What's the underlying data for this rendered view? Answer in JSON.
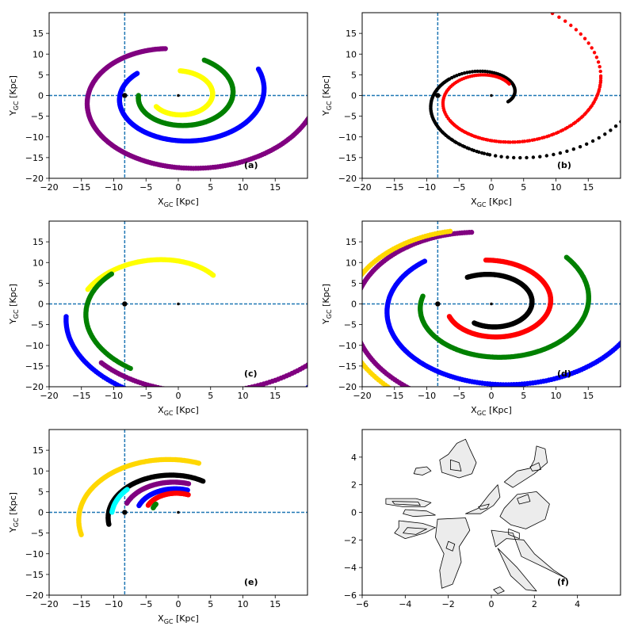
{
  "figure": {
    "background": "#ffffff"
  },
  "colors": {
    "axis_line": "#1f77b4",
    "frame": "#000000",
    "contour_fill": "#ececec"
  },
  "chart_data": [
    {
      "panel_label": "(a)",
      "type": "scatter",
      "xlabel": "X",
      "xlabel_sub": "GC",
      "xlabel_unit": " [Kpc]",
      "ylabel": "Y",
      "ylabel_sub": "GC",
      "ylabel_unit": " [Kpc]",
      "xlim": [
        -20,
        20
      ],
      "ylim": [
        -20,
        20
      ],
      "xticks": [
        -20,
        -15,
        -10,
        -5,
        0,
        5,
        10,
        15
      ],
      "yticks": [
        -20,
        -15,
        -10,
        -5,
        0,
        5,
        10,
        15
      ],
      "crosshair": {
        "x": -8.3,
        "y": 0
      },
      "sun": [
        -8.3,
        0
      ],
      "center": [
        0,
        0
      ],
      "series": [
        {
          "color": "#800080",
          "arcs": [
            {
              "r0": 9.0,
              "b": 0.14,
              "t0": 100,
              "t1": 350
            }
          ]
        },
        {
          "color": "#0000ff",
          "arcs": [
            {
              "r0": 6.2,
              "b": 0.12,
              "t0": 140,
              "t1": 388
            }
          ]
        },
        {
          "color": "#008000",
          "arcs": [
            {
              "r0": 4.5,
              "b": 0.1,
              "t0": 180,
              "t1": 425
            }
          ]
        },
        {
          "color": "#ffff00",
          "arcs": [
            {
              "r0": 3.2,
              "b": 0.08,
              "t0": 218,
              "t1": 448
            }
          ]
        }
      ]
    },
    {
      "panel_label": "(b)",
      "type": "scatter",
      "xlabel": "X",
      "xlabel_sub": "GC",
      "xlabel_unit": " [Kpc]",
      "ylabel": "Y",
      "ylabel_sub": "GC",
      "ylabel_unit": " [Kpc]",
      "xlim": [
        -20,
        20
      ],
      "ylim": [
        -20,
        20
      ],
      "xticks": [
        -20,
        -15,
        -10,
        -5,
        0,
        5,
        10,
        15
      ],
      "yticks": [
        -20,
        -15,
        -10,
        -5,
        0,
        5,
        10,
        15
      ],
      "crosshair": {
        "x": -8.3,
        "y": 0
      },
      "sun": [
        -8.3,
        0
      ],
      "center": [
        0,
        0
      ],
      "series": [
        {
          "color": "#000000",
          "sparse": true,
          "arcs": [
            {
              "r0": 3.5,
              "b": 0.3,
              "t0": 150,
              "t1": 450
            },
            {
              "r0": 3.5,
              "b": 0.3,
              "t0": -30,
              "t1": 270
            }
          ]
        },
        {
          "color": "#ff0000",
          "sparse": true,
          "arcs": [
            {
              "r0": 3.2,
              "b": 0.26,
              "t0": 45,
              "t1": 375
            },
            {
              "r0": 3.2,
              "b": 0.26,
              "t0": 225,
              "t1": 555
            }
          ]
        }
      ]
    },
    {
      "panel_label": "(c)",
      "type": "scatter",
      "xlabel": "X",
      "xlabel_sub": "GC",
      "xlabel_unit": " [Kpc]",
      "ylabel": "Y",
      "ylabel_sub": "GC",
      "ylabel_unit": " [Kpc]",
      "xlim": [
        -20,
        20
      ],
      "ylim": [
        -20,
        20
      ],
      "xticks": [
        -20,
        -15,
        -10,
        -5,
        0,
        5,
        10,
        15
      ],
      "yticks": [
        -20,
        -15,
        -10,
        -5,
        0,
        5,
        10,
        15
      ],
      "crosshair": {
        "x": -8.3,
        "y": 0
      },
      "sun": [
        -8.3,
        0
      ],
      "center": [
        0,
        0
      ],
      "series": [
        {
          "color": "#ffff00",
          "arcs": [
            {
              "r0": 7.0,
              "b": 0.25,
              "t0": 52,
              "t1": 166
            }
          ]
        },
        {
          "color": "#008000",
          "arcs": [
            {
              "r0": 8.0,
              "b": 0.18,
              "t0": 145,
              "t1": 245
            }
          ]
        },
        {
          "color": "#0000ff",
          "arcs": [
            {
              "r0": 8.5,
              "b": 0.22,
              "t0": 190,
              "t1": 346
            }
          ]
        },
        {
          "color": "#800080",
          "arcs": [
            {
              "r0": 9.0,
              "b": 0.18,
              "t0": 230,
              "t1": 398
            }
          ]
        }
      ]
    },
    {
      "panel_label": "(d)",
      "type": "scatter",
      "xlabel": "X",
      "xlabel_sub": "GC",
      "xlabel_unit": " [Kpc]",
      "ylabel": "Y",
      "ylabel_sub": "GC",
      "ylabel_unit": " [Kpc]",
      "xlim": [
        -20,
        20
      ],
      "ylim": [
        -20,
        20
      ],
      "xticks": [
        -20,
        -15,
        -10,
        -5,
        0,
        5,
        10,
        15
      ],
      "yticks": [
        -20,
        -15,
        -10,
        -5,
        0,
        5,
        10,
        15
      ],
      "crosshair": {
        "x": -8.3,
        "y": 0
      },
      "sun": [
        -8.3,
        0
      ],
      "center": [
        0,
        0
      ],
      "series": [
        {
          "color": "#800080",
          "arcs": [
            {
              "r0": 14.0,
              "b": 0.13,
              "t0": 100,
              "t1": 345
            }
          ]
        },
        {
          "color": "#0000ff",
          "arcs": [
            {
              "r0": 11.0,
              "b": 0.12,
              "t0": 135,
              "t1": 385
            }
          ]
        },
        {
          "color": "#ffd700",
          "arcs": [
            {
              "r0": 14.0,
              "b": 0.15,
              "t0": 110,
              "t1": 355
            }
          ]
        },
        {
          "color": "#008000",
          "arcs": [
            {
              "r0": 8.0,
              "b": 0.1,
              "t0": 170,
              "t1": 405
            }
          ]
        },
        {
          "color": "#ff0000",
          "arcs": [
            {
              "r0": 5.2,
              "b": 0.09,
              "t0": 205,
              "t1": 455
            }
          ]
        },
        {
          "color": "#000000",
          "arcs": [
            {
              "r0": 3.8,
              "b": 0.08,
              "t0": 240,
              "t1": 480
            }
          ]
        }
      ]
    },
    {
      "panel_label": "(e)",
      "type": "scatter",
      "xlabel": "X",
      "xlabel_sub": "GC",
      "xlabel_unit": " [Kpc]",
      "ylabel": "Y",
      "ylabel_sub": "GC",
      "ylabel_unit": " [Kpc]",
      "xlim": [
        -20,
        20
      ],
      "ylim": [
        -20,
        20
      ],
      "xticks": [
        -20,
        -15,
        -10,
        -5,
        0,
        5,
        10,
        15
      ],
      "yticks": [
        -20,
        -15,
        -10,
        -5,
        0,
        5,
        10,
        15
      ],
      "crosshair": {
        "x": -8.3,
        "y": 0
      },
      "sun": [
        -8.3,
        0
      ],
      "center": [
        0,
        0
      ],
      "series": [
        {
          "color": "#ffd700",
          "arcs": [
            {
              "r0": 10.5,
              "b": 0.12,
              "t0": 75,
              "t1": 200
            }
          ]
        },
        {
          "color": "#000000",
          "arcs": [
            {
              "r0": 7.4,
              "b": 0.12,
              "t0": 63,
              "t1": 195
            }
          ]
        },
        {
          "color": "#800080",
          "arcs": [
            {
              "r0": 6.2,
              "b": 0.1,
              "t0": 77,
              "t1": 165
            }
          ]
        },
        {
          "color": "#0000ff",
          "arcs": [
            {
              "r0": 5.0,
              "b": 0.08,
              "t0": 75,
              "t1": 165
            }
          ]
        },
        {
          "color": "#ff0000",
          "arcs": [
            {
              "r0": 4.2,
              "b": 0.06,
              "t0": 70,
              "t1": 160
            }
          ]
        },
        {
          "color": "#00ffff",
          "arcs": [
            {
              "r0": 7.5,
              "b": 0.1,
              "t0": 145,
              "t1": 180
            }
          ]
        },
        {
          "color": "#008000",
          "arcs": [
            {
              "r0": 3.5,
              "b": 0.05,
              "t0": 150,
              "t1": 165
            }
          ]
        }
      ]
    },
    {
      "panel_label": "(f)",
      "type": "contour",
      "xlim": [
        -6,
        6
      ],
      "ylim": [
        -6,
        6
      ],
      "xticks": [
        -6,
        -4,
        -2,
        0,
        2,
        4
      ],
      "yticks": [
        -6,
        -4,
        -2,
        0,
        2,
        4
      ],
      "outer_regions": [
        [
          [
            -1.6,
            5.0
          ],
          [
            -1.2,
            5.3
          ],
          [
            -1.0,
            4.6
          ],
          [
            -0.7,
            3.6
          ],
          [
            -0.9,
            2.8
          ],
          [
            -1.5,
            2.5
          ],
          [
            -2.3,
            2.9
          ],
          [
            -2.4,
            3.8
          ],
          [
            -2.0,
            4.2
          ]
        ],
        [
          [
            -3.5,
            3.2
          ],
          [
            -3.0,
            3.3
          ],
          [
            -2.8,
            3.0
          ],
          [
            -3.2,
            2.7
          ],
          [
            -3.6,
            2.8
          ]
        ],
        [
          [
            -4.9,
            1.0
          ],
          [
            -3.5,
            1.0
          ],
          [
            -2.8,
            0.7
          ],
          [
            -3.1,
            0.4
          ],
          [
            -4.1,
            0.4
          ],
          [
            -4.9,
            0.6
          ]
        ],
        [
          [
            -4.0,
            0.2
          ],
          [
            -3.0,
            0.1
          ],
          [
            -2.6,
            -0.2
          ],
          [
            -3.6,
            -0.3
          ],
          [
            -4.1,
            -0.1
          ]
        ],
        [
          [
            -4.3,
            -0.6
          ],
          [
            -3.2,
            -0.8
          ],
          [
            -2.6,
            -1.1
          ],
          [
            -3.1,
            -1.5
          ],
          [
            -4.0,
            -1.9
          ],
          [
            -4.5,
            -1.5
          ],
          [
            -4.3,
            -1.1
          ]
        ],
        [
          [
            -2.5,
            -0.5
          ],
          [
            -1.2,
            -0.4
          ],
          [
            -1.0,
            -1.3
          ],
          [
            -1.5,
            -2.5
          ],
          [
            -1.4,
            -3.6
          ],
          [
            -1.8,
            -5.2
          ],
          [
            -2.3,
            -5.5
          ],
          [
            -2.4,
            -4.2
          ],
          [
            -2.2,
            -3.0
          ],
          [
            -2.6,
            -1.8
          ]
        ],
        [
          [
            -1.2,
            -0.1
          ],
          [
            -0.6,
            0.3
          ],
          [
            -0.1,
            1.3
          ],
          [
            0.3,
            2.0
          ],
          [
            0.4,
            1.1
          ],
          [
            0.1,
            0.5
          ],
          [
            -0.5,
            -0.1
          ]
        ],
        [
          [
            0.6,
            2.2
          ],
          [
            1.2,
            3.0
          ],
          [
            1.8,
            3.2
          ],
          [
            2.0,
            3.8
          ],
          [
            2.1,
            4.8
          ],
          [
            2.5,
            4.6
          ],
          [
            2.6,
            3.6
          ],
          [
            2.0,
            2.8
          ],
          [
            1.4,
            2.2
          ],
          [
            1.0,
            1.8
          ]
        ],
        [
          [
            0.6,
            0.3
          ],
          [
            1.2,
            1.3
          ],
          [
            2.1,
            1.5
          ],
          [
            2.7,
            0.6
          ],
          [
            2.5,
            -0.5
          ],
          [
            1.6,
            -1.2
          ],
          [
            0.9,
            -0.9
          ],
          [
            0.4,
            -0.3
          ]
        ],
        [
          [
            0.0,
            -1.3
          ],
          [
            1.0,
            -1.5
          ],
          [
            1.4,
            -3.2
          ],
          [
            2.6,
            -4.1
          ],
          [
            3.5,
            -4.8
          ],
          [
            2.9,
            -4.2
          ],
          [
            2.0,
            -3.0
          ],
          [
            1.5,
            -2.0
          ],
          [
            0.7,
            -1.9
          ],
          [
            0.2,
            -2.5
          ]
        ],
        [
          [
            0.3,
            -2.6
          ],
          [
            1.2,
            -4.0
          ],
          [
            2.1,
            -5.7
          ],
          [
            1.6,
            -5.6
          ],
          [
            0.9,
            -4.6
          ]
        ],
        [
          [
            0.3,
            -5.9
          ],
          [
            0.6,
            -5.7
          ],
          [
            0.4,
            -5.4
          ],
          [
            0.1,
            -5.6
          ]
        ]
      ],
      "inner_regions": [
        [
          [
            -1.9,
            3.8
          ],
          [
            -1.5,
            3.6
          ],
          [
            -1.4,
            3.0
          ],
          [
            -1.9,
            3.1
          ]
        ],
        [
          [
            -4.6,
            0.8
          ],
          [
            -3.4,
            0.75
          ],
          [
            -3.3,
            0.5
          ],
          [
            -4.5,
            0.6
          ]
        ],
        [
          [
            -3.9,
            -1.1
          ],
          [
            -3.0,
            -1.2
          ],
          [
            -3.5,
            -1.6
          ],
          [
            -4.1,
            -1.5
          ]
        ],
        [
          [
            -2.0,
            -2.1
          ],
          [
            -1.7,
            -2.3
          ],
          [
            -1.8,
            -2.8
          ],
          [
            -2.1,
            -2.6
          ]
        ],
        [
          [
            -0.6,
            0.4
          ],
          [
            -0.1,
            0.6
          ],
          [
            -0.2,
            0.3
          ],
          [
            -0.5,
            0.2
          ]
        ],
        [
          [
            1.2,
            1.0
          ],
          [
            1.7,
            1.3
          ],
          [
            1.8,
            0.8
          ],
          [
            1.3,
            0.6
          ]
        ],
        [
          [
            1.8,
            3.3
          ],
          [
            2.2,
            3.6
          ],
          [
            2.3,
            3.1
          ],
          [
            1.9,
            3.0
          ]
        ],
        [
          [
            0.8,
            -1.2
          ],
          [
            1.3,
            -1.5
          ],
          [
            1.3,
            -1.9
          ],
          [
            0.8,
            -1.6
          ]
        ]
      ]
    }
  ]
}
